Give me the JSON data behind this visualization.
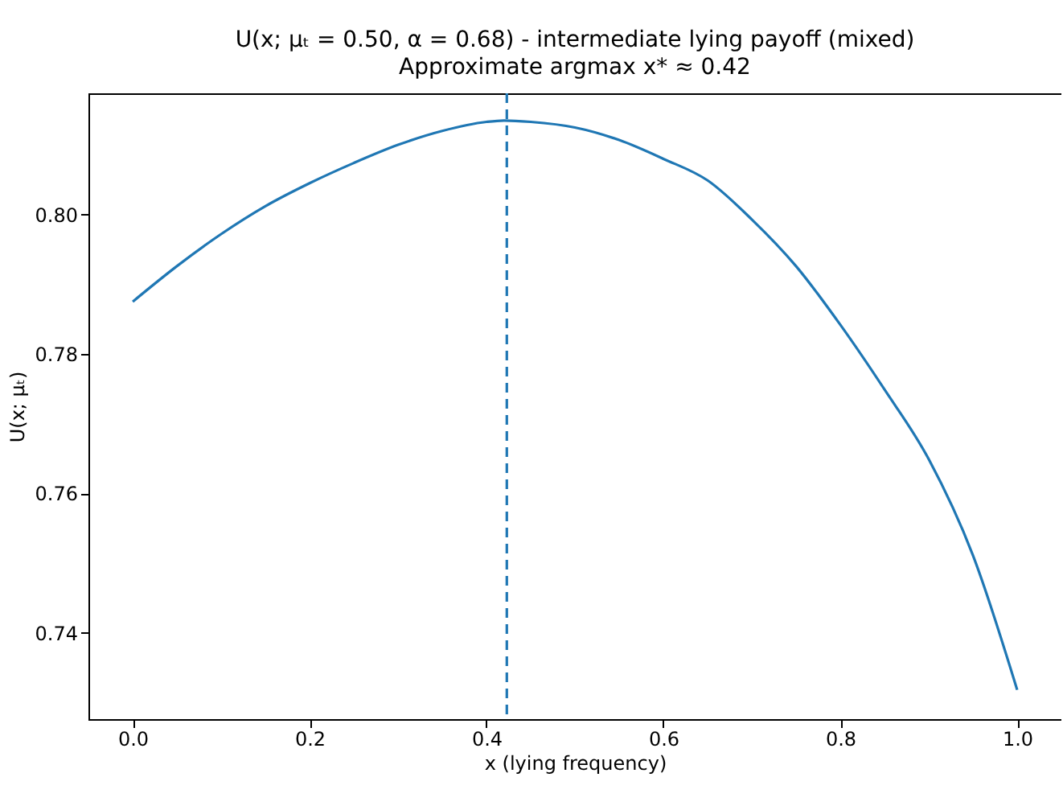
{
  "chart_data": {
    "type": "line",
    "title": "U(x; μₜ = 0.50, α = 0.68) - intermediate lying payoff (mixed)",
    "subtitle": "Approximate argmax x* ≈ 0.42",
    "xlabel": "x (lying frequency)",
    "ylabel": "U(x; μₜ)",
    "x": [
      0,
      0.05,
      0.1,
      0.15,
      0.2,
      0.25,
      0.3,
      0.35,
      0.4,
      0.42,
      0.45,
      0.5,
      0.55,
      0.6,
      0.65,
      0.7,
      0.75,
      0.8,
      0.85,
      0.9,
      0.95,
      1.0
    ],
    "series": [
      {
        "color": "#1f77b4",
        "values": [
          0.7875,
          0.7926,
          0.7972,
          0.8012,
          0.8045,
          0.8074,
          0.81,
          0.812,
          0.8133,
          0.8135,
          0.8133,
          0.8125,
          0.8107,
          0.808,
          0.8049,
          0.7993,
          0.7926,
          0.7842,
          0.7749,
          0.7649,
          0.7511,
          0.7318
        ]
      }
    ],
    "xlim": [
      -0.05,
      1.05
    ],
    "xticks": [
      {
        "value": 0,
        "label": "0.0"
      },
      0.2,
      0.4,
      0.6,
      0.8,
      {
        "value": 1,
        "label": "1.0"
      }
    ],
    "ylim": [
      0.7276,
      0.8174
    ],
    "yticks": [
      0.74,
      0.76,
      0.78,
      {
        "value": 0.8,
        "label": "0.80"
      }
    ],
    "ref_lines": [
      {
        "axis": "x",
        "value": 0.423,
        "color": "#1f77b4",
        "line_style": "dashed"
      }
    ],
    "grid": false
  }
}
